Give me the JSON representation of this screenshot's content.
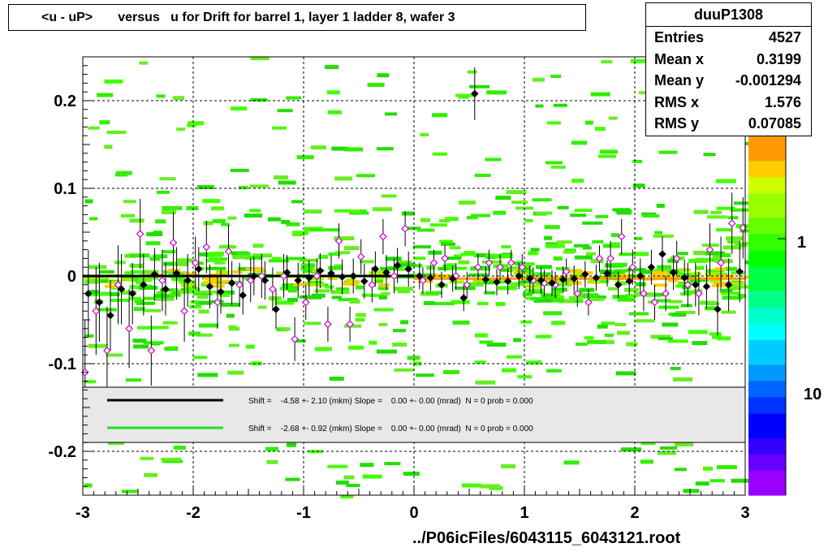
{
  "title": "<u - uP>       versus   u for Drift for barrel 1, layer 1 ladder 8, wafer 3",
  "stats": {
    "name": "duuP1308",
    "rows": [
      {
        "label": "Entries",
        "value": "4527"
      },
      {
        "label": "Mean x",
        "value": "0.3199"
      },
      {
        "label": "Mean y",
        "value": "-0.001294"
      },
      {
        "label": "RMS x",
        "value": "1.576"
      },
      {
        "label": "RMS y",
        "value": "0.07085"
      }
    ]
  },
  "footer": "../P06icFiles/6043115_6043121.root",
  "colors": {
    "black_fit": "#000000",
    "green_fit": "#22dd22",
    "black_points": "#000000",
    "open_points": "#cc00cc",
    "histogram": "#33dd00",
    "palette_low": "#9900ff",
    "palette_high": "#ff9900"
  },
  "chart_data": {
    "type": "scatter",
    "title": "<u - uP>       versus   u for Drift for barrel 1, layer 1 ladder 8, wafer 3",
    "xlim": [
      -3,
      3
    ],
    "ylim": [
      -0.25,
      0.25
    ],
    "x_ticks": [
      "-3",
      "-2",
      "-1",
      "0",
      "1",
      "2",
      "3"
    ],
    "y_ticks": [
      "0.2",
      "0.1",
      "0",
      "-0.1",
      "-0.2"
    ],
    "palette_labels": [
      "1",
      "10"
    ],
    "grid": true,
    "legend": [
      {
        "text": "Shift =    -4.58 +- 2.10 (mkm) Slope =    0.00 +- 0.00 (mrad)  N = 0 prob = 0.000",
        "color": "#000000"
      },
      {
        "text": "Shift =    -2.68 +- 0.92 (mkm) Slope =    0.00 +- 0.00 (mrad)  N = 0 prob = 0.000",
        "color": "#22dd22"
      }
    ],
    "series": [
      {
        "x": [
          -2.95,
          -2.85,
          -2.75,
          -2.65,
          -2.55,
          -2.45,
          -2.35,
          -2.25,
          -2.15,
          -2.05,
          -1.95,
          -1.85,
          -1.75,
          -1.65,
          -1.55,
          -1.45,
          -1.35,
          -1.25,
          -1.15,
          -1.05,
          -0.95,
          -0.85,
          -0.75,
          -0.65,
          -0.55,
          -0.45,
          -0.35,
          -0.25,
          -0.15,
          -0.05,
          0.05,
          0.15,
          0.25,
          0.35,
          0.45,
          0.55,
          0.65,
          0.75,
          0.85,
          0.95,
          1.05,
          1.15,
          1.25,
          1.35,
          1.45,
          1.55,
          1.65,
          1.75,
          1.85,
          1.95,
          2.05,
          2.15,
          2.25,
          2.35,
          2.45,
          2.55,
          2.65,
          2.75,
          2.85,
          2.95
        ],
        "y": [
          -0.02,
          -0.03,
          -0.045,
          -0.015,
          -0.02,
          -0.01,
          0.002,
          -0.015,
          0.003,
          -0.005,
          0.008,
          -0.012,
          -0.018,
          -0.008,
          -0.022,
          0.0,
          -0.005,
          -0.038,
          0.004,
          -0.005,
          -0.002,
          0.006,
          0.003,
          -0.001,
          0.0,
          -0.006,
          0.008,
          0.004,
          0.012,
          0.008,
          0.0,
          -0.002,
          -0.01,
          -0.003,
          -0.025,
          0.208,
          -0.004,
          -0.007,
          -0.006,
          0.0,
          -0.003,
          -0.005,
          -0.008,
          -0.004,
          -0.003,
          0.002,
          -0.002,
          0.003,
          -0.01,
          -0.006,
          0.0,
          0.01,
          0.025,
          0.004,
          -0.002,
          -0.01,
          -0.012,
          -0.038,
          -0.01,
          0.005
        ],
        "yerr": [
          0.05,
          0.045,
          0.04,
          0.04,
          0.035,
          0.035,
          0.03,
          0.03,
          0.03,
          0.03,
          0.025,
          0.025,
          0.025,
          0.025,
          0.022,
          0.022,
          0.022,
          0.022,
          0.02,
          0.02,
          0.02,
          0.02,
          0.02,
          0.02,
          0.02,
          0.02,
          0.02,
          0.02,
          0.02,
          0.02,
          0.015,
          0.015,
          0.015,
          0.015,
          0.015,
          0.03,
          0.015,
          0.015,
          0.015,
          0.015,
          0.015,
          0.015,
          0.015,
          0.015,
          0.015,
          0.015,
          0.015,
          0.015,
          0.015,
          0.015,
          0.02,
          0.02,
          0.02,
          0.02,
          0.02,
          0.025,
          0.025,
          0.03,
          0.03,
          0.035
        ]
      },
      {
        "x": [
          -2.98,
          -2.88,
          -2.78,
          -2.68,
          -2.58,
          -2.48,
          -2.38,
          -2.28,
          -2.18,
          -2.08,
          -1.98,
          -1.88,
          -1.78,
          -1.68,
          -1.58,
          -1.48,
          -1.38,
          -1.28,
          -1.18,
          -1.08,
          -0.98,
          -0.88,
          -0.78,
          -0.68,
          -0.58,
          -0.48,
          -0.38,
          -0.28,
          -0.18,
          -0.08,
          0.08,
          0.18,
          0.28,
          0.38,
          0.48,
          0.58,
          0.68,
          0.78,
          0.88,
          0.98,
          1.08,
          1.18,
          1.28,
          1.38,
          1.48,
          1.58,
          1.68,
          1.78,
          1.88,
          1.98,
          2.08,
          2.18,
          2.28,
          2.38,
          2.48,
          2.58,
          2.68,
          2.78,
          2.88,
          2.98
        ],
        "y": [
          -0.11,
          -0.04,
          -0.085,
          -0.01,
          -0.06,
          0.048,
          -0.085,
          -0.005,
          0.038,
          -0.04,
          0.015,
          0.033,
          -0.03,
          0.028,
          -0.01,
          -0.005,
          0.0,
          -0.015,
          0.0,
          -0.072,
          -0.03,
          0.0,
          -0.055,
          0.04,
          -0.055,
          0.022,
          -0.01,
          0.045,
          0.0,
          0.054,
          -0.005,
          0.015,
          0.02,
          0.0,
          -0.01,
          0.01,
          0.015,
          0.01,
          0.015,
          0.01,
          -0.005,
          -0.008,
          -0.01,
          0.005,
          -0.02,
          -0.03,
          0.02,
          0.02,
          0.045,
          0.01,
          -0.02,
          -0.03,
          -0.02,
          0.02,
          -0.01,
          -0.02,
          0.03,
          0.015,
          0.06,
          0.055
        ],
        "yerr": [
          0.06,
          0.05,
          0.05,
          0.045,
          0.045,
          0.04,
          0.04,
          0.035,
          0.035,
          0.035,
          0.03,
          0.03,
          0.03,
          0.03,
          0.025,
          0.025,
          0.025,
          0.025,
          0.025,
          0.025,
          0.02,
          0.02,
          0.02,
          0.02,
          0.02,
          0.02,
          0.02,
          0.02,
          0.02,
          0.02,
          0.015,
          0.015,
          0.015,
          0.015,
          0.015,
          0.015,
          0.015,
          0.015,
          0.015,
          0.015,
          0.015,
          0.015,
          0.015,
          0.015,
          0.015,
          0.015,
          0.015,
          0.02,
          0.02,
          0.02,
          0.02,
          0.02,
          0.02,
          0.02,
          0.025,
          0.025,
          0.03,
          0.03,
          0.035,
          0.035
        ]
      }
    ],
    "fits": [
      {
        "x": [
          -3,
          0
        ],
        "y": [
          0.0,
          0.0
        ]
      },
      {
        "x": [
          0,
          3
        ],
        "y": [
          -0.003,
          -0.003
        ]
      }
    ]
  }
}
